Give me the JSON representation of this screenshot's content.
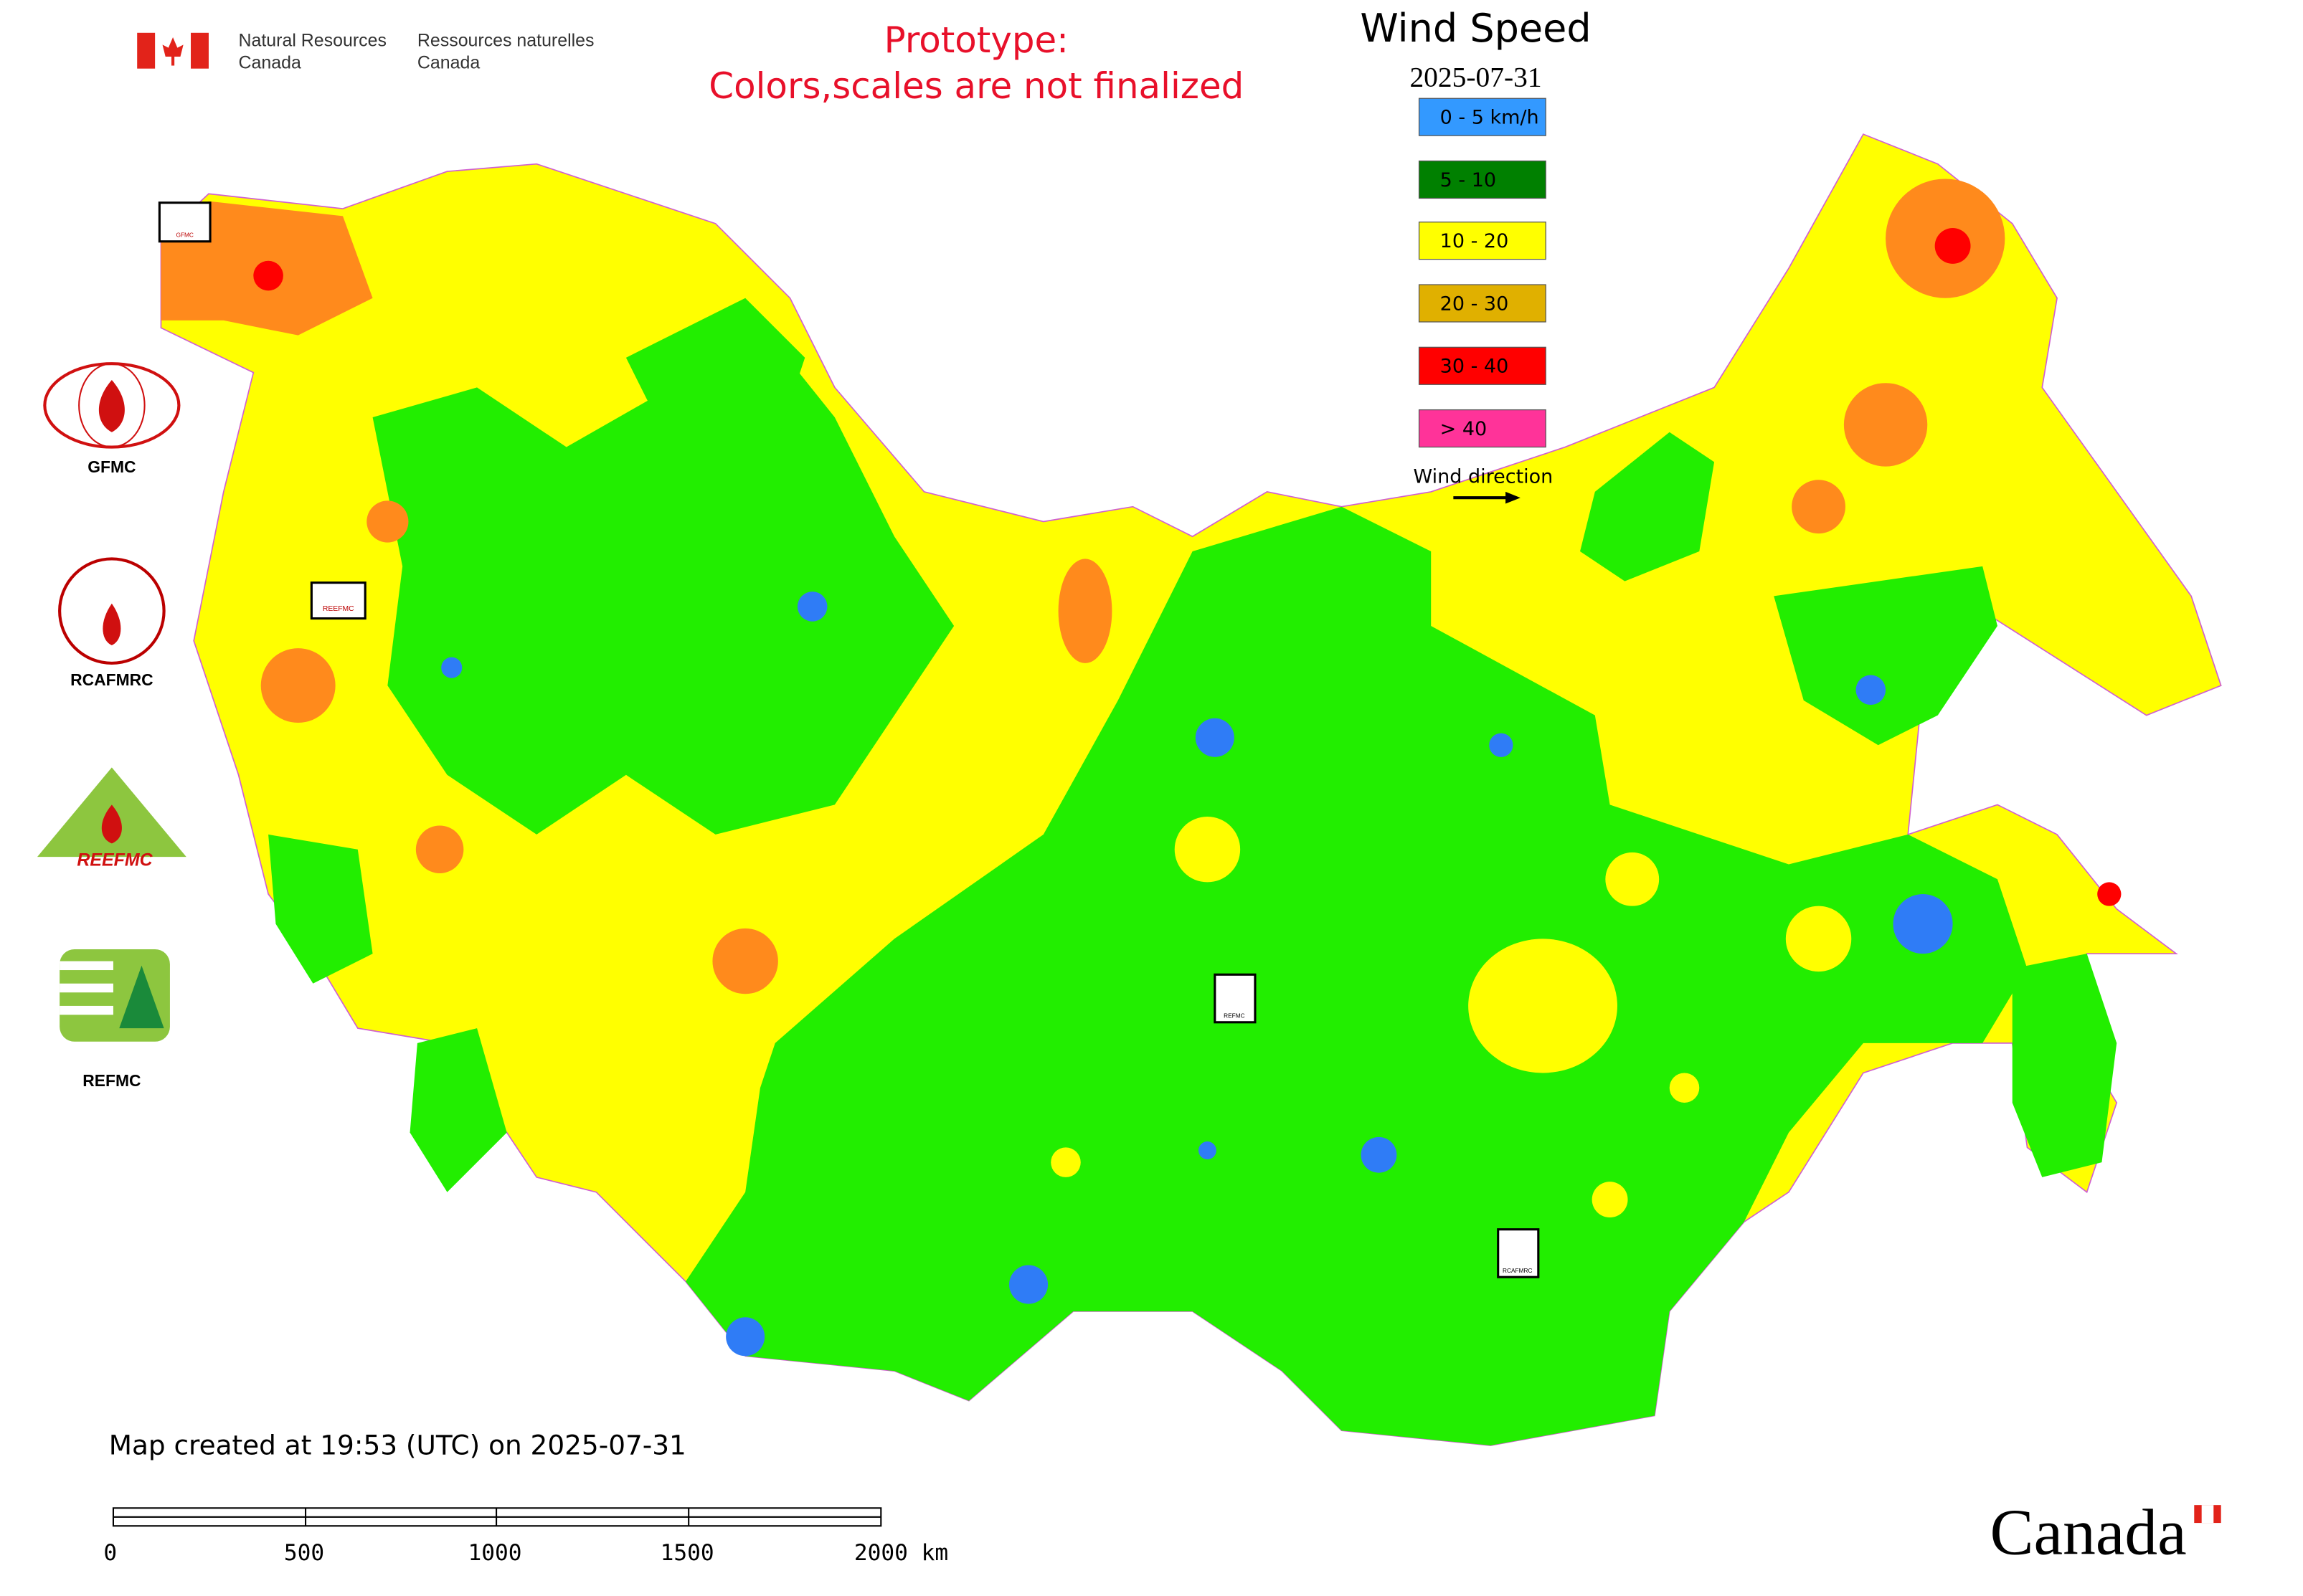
{
  "header": {
    "agency_en": [
      "Natural Resources",
      "Canada"
    ],
    "agency_fr": [
      "Ressources naturelles",
      "Canada"
    ],
    "notice": [
      "Prototype:",
      "Colors,scales are not finalized"
    ]
  },
  "legend": {
    "title": "Wind Speed",
    "date": "2025-07-31",
    "items": [
      {
        "label": "0 - 5 km/h",
        "color": "#3399ff"
      },
      {
        "label": "5 - 10",
        "color": "#008000"
      },
      {
        "label": "10 - 20",
        "color": "#ffff00"
      },
      {
        "label": "20 - 30",
        "color": "#e0b000"
      },
      {
        "label": "30 - 40",
        "color": "#ff0000"
      },
      {
        "label": "> 40",
        "color": "#ff3399"
      }
    ],
    "direction_label": "Wind direction"
  },
  "map_colors": {
    "calm": "#2f7cf6",
    "light": "#22ee00",
    "moderate": "#ffff00",
    "fresh": "#ff8a1c",
    "strong": "#ff0000"
  },
  "logos": [
    "GFMC",
    "RCAFMRC",
    "REEFMC",
    "REFMC"
  ],
  "footer": {
    "created": "Map created at 19:53 (UTC) on 2025-07-31",
    "scale": [
      "0",
      "500",
      "1000",
      "1500",
      "2000 km"
    ],
    "wordmark": "Canada"
  }
}
